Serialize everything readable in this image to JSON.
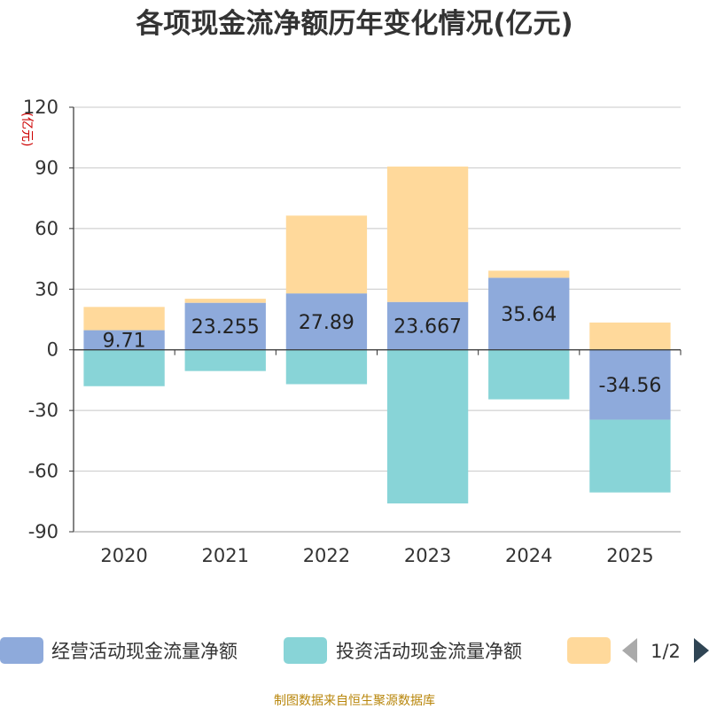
{
  "chart_data": {
    "type": "bar",
    "stacked": true,
    "title": "各项现金流净额历年变化情况(亿元)",
    "ylabel": "(亿元)",
    "ylim": [
      -90,
      120
    ],
    "yticks": [
      -90,
      -60,
      -30,
      0,
      30,
      60,
      90,
      120
    ],
    "grid": true,
    "categories": [
      "2020",
      "2021",
      "2022",
      "2023",
      "2024",
      "2025"
    ],
    "series": [
      {
        "name": "经营活动现金流量净额",
        "color": "#8eaadb",
        "values": [
          9.71,
          23.255,
          27.89,
          23.667,
          35.64,
          -34.56
        ],
        "labels": [
          "9.71",
          "23.255",
          "27.89",
          "23.667",
          "35.64",
          "-34.56"
        ]
      },
      {
        "name": "投资活动现金流量净额",
        "color": "#88d4d7",
        "values": [
          -18,
          -10.5,
          -17,
          -76,
          -24.5,
          -36
        ]
      },
      {
        "name": "",
        "color": "#ffd99b",
        "values": [
          11.5,
          2,
          38.5,
          67,
          3.5,
          13.5
        ]
      }
    ],
    "legend": {
      "page": "1/2",
      "position": "bottom"
    }
  },
  "source": "制图数据来自恒生聚源数据库"
}
